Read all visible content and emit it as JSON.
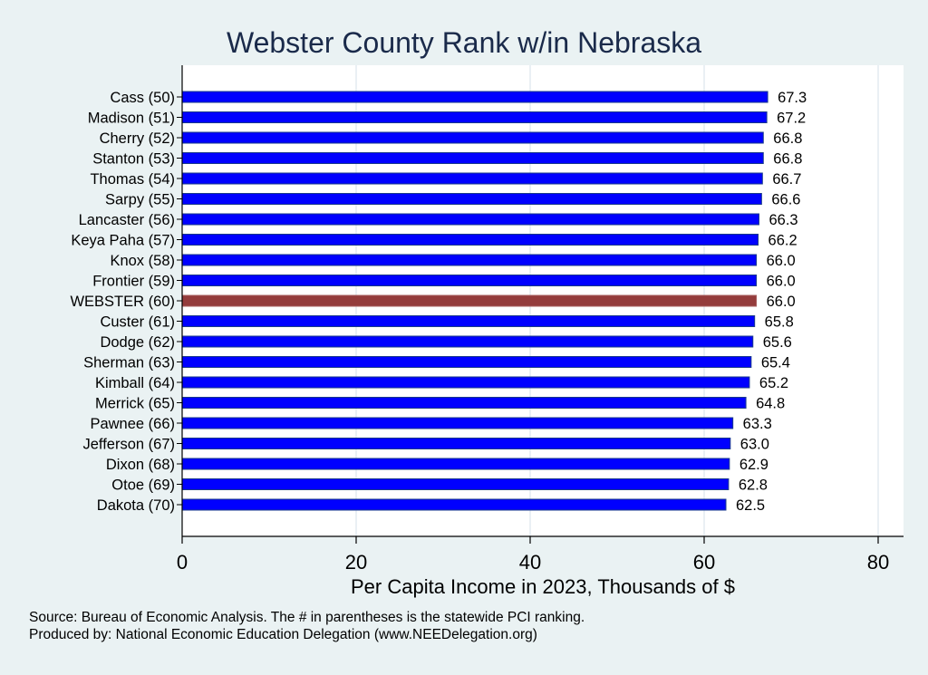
{
  "chart_data": {
    "type": "bar",
    "orientation": "horizontal",
    "title": "Webster County Rank w/in Nebraska",
    "xlabel": "Per Capita Income in 2023, Thousands of $",
    "ylabel": "",
    "xlim": [
      0,
      83
    ],
    "xticks": [
      0,
      20,
      40,
      60,
      80
    ],
    "grid": true,
    "categories": [
      "Cass (50)",
      "Madison (51)",
      "Cherry (52)",
      "Stanton (53)",
      "Thomas (54)",
      "Sarpy (55)",
      "Lancaster (56)",
      "Keya Paha (57)",
      "Knox (58)",
      "Frontier (59)",
      "WEBSTER (60)",
      "Custer (61)",
      "Dodge (62)",
      "Sherman (63)",
      "Kimball (64)",
      "Merrick (65)",
      "Pawnee (66)",
      "Jefferson (67)",
      "Dixon (68)",
      "Otoe (69)",
      "Dakota (70)"
    ],
    "values": [
      67.3,
      67.2,
      66.8,
      66.8,
      66.7,
      66.6,
      66.3,
      66.2,
      66.0,
      66.0,
      66.0,
      65.8,
      65.6,
      65.4,
      65.2,
      64.8,
      63.3,
      63.0,
      62.9,
      62.8,
      62.5
    ],
    "value_labels": [
      "67.3",
      "67.2",
      "66.8",
      "66.8",
      "66.7",
      "66.6",
      "66.3",
      "66.2",
      "66.0",
      "66.0",
      "66.0",
      "65.8",
      "65.6",
      "65.4",
      "65.2",
      "64.8",
      "63.3",
      "63.0",
      "62.9",
      "62.8",
      "62.5"
    ],
    "highlight_index": 10,
    "colors": {
      "bar": "#0000ff",
      "bar_edge": "#1a3a8a",
      "highlight": "#943c3c",
      "title": "#1a2a4a",
      "background": "#eaf2f3",
      "plot": "#ffffff"
    }
  },
  "notes": {
    "source": "Source: Bureau of Economic Analysis. The # in parentheses is the statewide PCI ranking.",
    "produced": "Produced by: National Economic Education Delegation (www.NEEDelegation.org)"
  }
}
